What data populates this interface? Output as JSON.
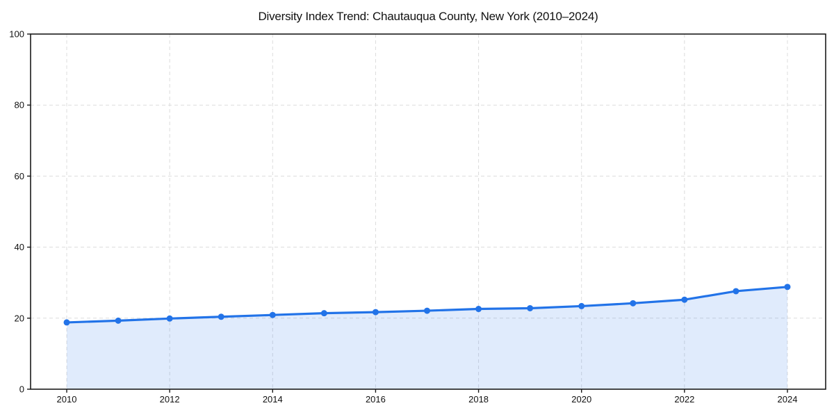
{
  "chart_data": {
    "type": "line",
    "area": true,
    "title": "Diversity Index Trend: Chautauqua County, New York (2010–2024)",
    "xlabel": "",
    "ylabel": "",
    "x": [
      2010,
      2011,
      2012,
      2013,
      2014,
      2015,
      2016,
      2017,
      2018,
      2019,
      2020,
      2021,
      2022,
      2023,
      2024
    ],
    "series": [
      {
        "name": "Diversity Index",
        "values": [
          18.8,
          19.3,
          19.9,
          20.4,
          20.9,
          21.4,
          21.7,
          22.1,
          22.6,
          22.8,
          23.4,
          24.2,
          25.2,
          27.6,
          28.8
        ]
      }
    ],
    "ylim": [
      0,
      100
    ],
    "y_ticks": [
      0,
      20,
      40,
      60,
      80,
      100
    ],
    "x_ticks": [
      2010,
      2012,
      2014,
      2016,
      2018,
      2020,
      2022,
      2024
    ],
    "grid": true,
    "legend": false,
    "colors": {
      "line": "#2273e8",
      "marker": "#2273e8",
      "fill": "#2273e8",
      "fill_opacity": 0.14,
      "grid": "#dcdcdc",
      "axis": "#1a1a1a",
      "text": "#111111"
    }
  }
}
